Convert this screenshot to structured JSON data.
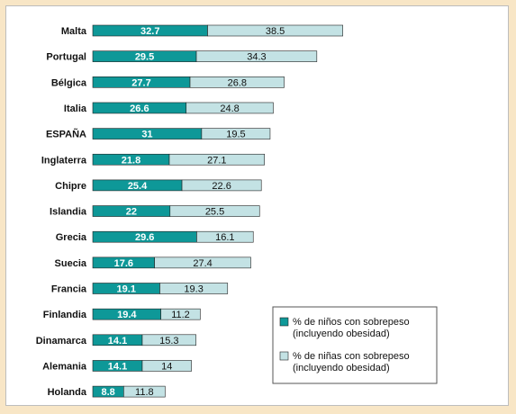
{
  "chart_data": {
    "type": "bar",
    "orientation": "horizontal",
    "stacked": true,
    "categories": [
      "Malta",
      "Portugal",
      "Bélgica",
      "Italia",
      "ESPAÑA",
      "Inglaterra",
      "Chipre",
      "Islandia",
      "Grecia",
      "Suecia",
      "Francia",
      "Finlandia",
      "Dinamarca",
      "Alemania",
      "Holanda"
    ],
    "series": [
      {
        "name": "% de niños con sobrepeso (incluyendo obesidad)",
        "name_lines": [
          "% de niños con sobrepeso",
          "(incluyendo obesidad)"
        ],
        "color": "#0e9898",
        "values": [
          32.7,
          29.5,
          27.7,
          26.6,
          31,
          21.8,
          25.4,
          22,
          29.6,
          17.6,
          19.1,
          19.4,
          14.1,
          14.1,
          8.8
        ]
      },
      {
        "name": "% de niñas con sobrepeso (incluyendo obesidad)",
        "name_lines": [
          "% de niñas con sobrepeso",
          "(incluyendo obesidad)"
        ],
        "color": "#c3e2e4",
        "values": [
          38.5,
          34.3,
          26.8,
          24.8,
          19.5,
          27.1,
          22.6,
          25.5,
          16.1,
          27.4,
          19.3,
          11.2,
          15.3,
          14,
          11.8
        ]
      }
    ],
    "grid": false,
    "legend_position": "bottom-right"
  }
}
